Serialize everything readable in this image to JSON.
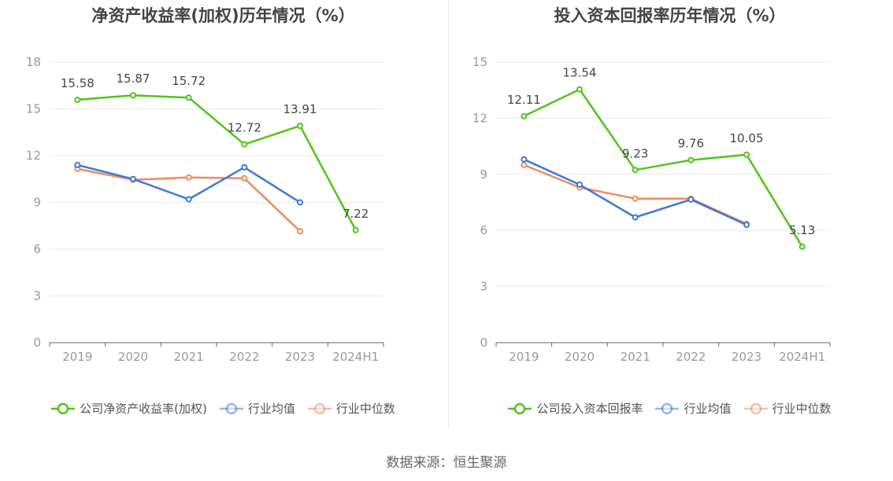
{
  "footer": {
    "source": "数据来源：恒生聚源"
  },
  "chart_data": [
    {
      "type": "line",
      "title": "净资产收益率(加权)历年情况（%）",
      "xlabel": "",
      "ylabel": "",
      "categories": [
        "2019",
        "2020",
        "2021",
        "2022",
        "2023",
        "2024H1"
      ],
      "ylim": [
        0,
        18
      ],
      "yticks": [
        "0",
        "3",
        "6",
        "9",
        "12",
        "15",
        "18"
      ],
      "grid": true,
      "legend_position": "bottom",
      "series": [
        {
          "name": "公司净资产收益率(加权)",
          "color": "#52c41a",
          "labeled": true,
          "values": [
            15.58,
            15.87,
            15.72,
            12.72,
            13.91,
            7.22
          ],
          "labels": [
            "15.58",
            "15.87",
            "15.72",
            "12.72",
            "13.91",
            "7.22"
          ]
        },
        {
          "name": "行业均值",
          "color": "#3d79d6",
          "labeled": false,
          "values": [
            11.4,
            10.5,
            9.2,
            11.25,
            9.0,
            null
          ]
        },
        {
          "name": "行业中位数",
          "color": "#f08a5d",
          "labeled": false,
          "values": [
            11.15,
            10.45,
            10.6,
            10.55,
            7.15,
            null
          ]
        }
      ]
    },
    {
      "type": "line",
      "title": "投入资本回报率历年情况（%）",
      "xlabel": "",
      "ylabel": "",
      "categories": [
        "2019",
        "2020",
        "2021",
        "2022",
        "2023",
        "2024H1"
      ],
      "ylim": [
        0,
        15
      ],
      "yticks": [
        "0",
        "3",
        "6",
        "9",
        "12",
        "15"
      ],
      "grid": true,
      "legend_position": "bottom",
      "series": [
        {
          "name": "公司投入资本回报率",
          "color": "#52c41a",
          "labeled": true,
          "values": [
            12.11,
            13.54,
            9.23,
            9.76,
            10.05,
            5.13
          ],
          "labels": [
            "12.11",
            "13.54",
            "9.23",
            "9.76",
            "10.05",
            "5.13"
          ]
        },
        {
          "name": "行业均值",
          "color": "#3d79d6",
          "labeled": false,
          "values": [
            9.8,
            8.45,
            6.7,
            7.65,
            6.3,
            null
          ]
        },
        {
          "name": "行业中位数",
          "color": "#f08a5d",
          "labeled": false,
          "values": [
            9.5,
            8.3,
            7.7,
            7.7,
            6.35,
            null
          ]
        }
      ]
    }
  ]
}
